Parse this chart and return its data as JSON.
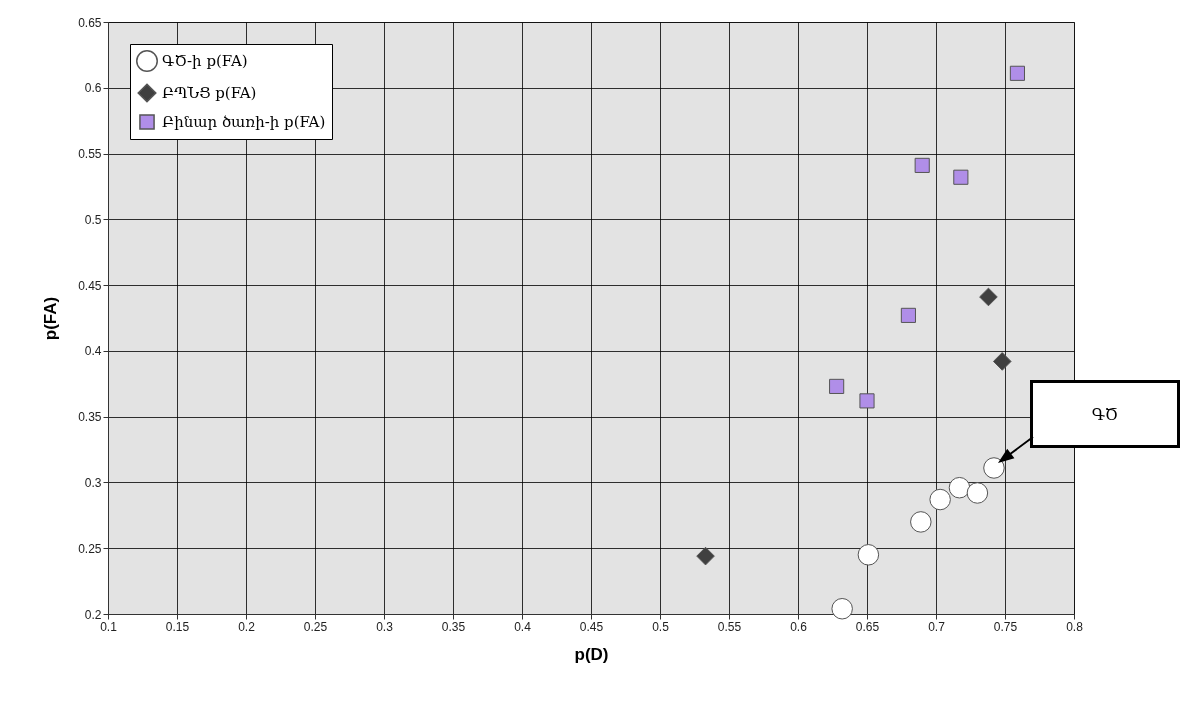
{
  "chart_data": {
    "type": "scatter",
    "xlabel": "p(D)",
    "ylabel": "p(FA)",
    "xlim": [
      0.1,
      0.8
    ],
    "ylim": [
      0.2,
      0.65
    ],
    "xticks": [
      0.1,
      0.15,
      0.2,
      0.25,
      0.3,
      0.35,
      0.4,
      0.45,
      0.5,
      0.55,
      0.6,
      0.65,
      0.7,
      0.75,
      0.8
    ],
    "yticks": [
      0.2,
      0.25,
      0.3,
      0.35,
      0.4,
      0.45,
      0.5,
      0.55,
      0.6,
      0.65
    ],
    "grid": true,
    "legend": "top left",
    "series": [
      {
        "name": "ԳԾ-ի p(FA)",
        "color": "#ffffff",
        "marker": "circle",
        "x": [
          0.632,
          0.651,
          0.689,
          0.703,
          0.717,
          0.73,
          0.742
        ],
        "values": [
          0.204,
          0.245,
          0.27,
          0.287,
          0.296,
          0.292,
          0.311
        ]
      },
      {
        "name": "ԲՊՆՑ p(FA)",
        "color": "#404040",
        "marker": "diamond",
        "x": [
          0.533,
          0.738,
          0.748
        ],
        "values": [
          0.244,
          0.441,
          0.392
        ]
      },
      {
        "name": "Բինար ծառի-ի p(FA)",
        "color": "#b08ee8",
        "marker": "square",
        "x": [
          0.628,
          0.65,
          0.68,
          0.69,
          0.718,
          0.759
        ],
        "values": [
          0.373,
          0.362,
          0.427,
          0.541,
          0.532,
          0.611
        ]
      }
    ],
    "annotations": [
      "ԳԾ"
    ]
  }
}
